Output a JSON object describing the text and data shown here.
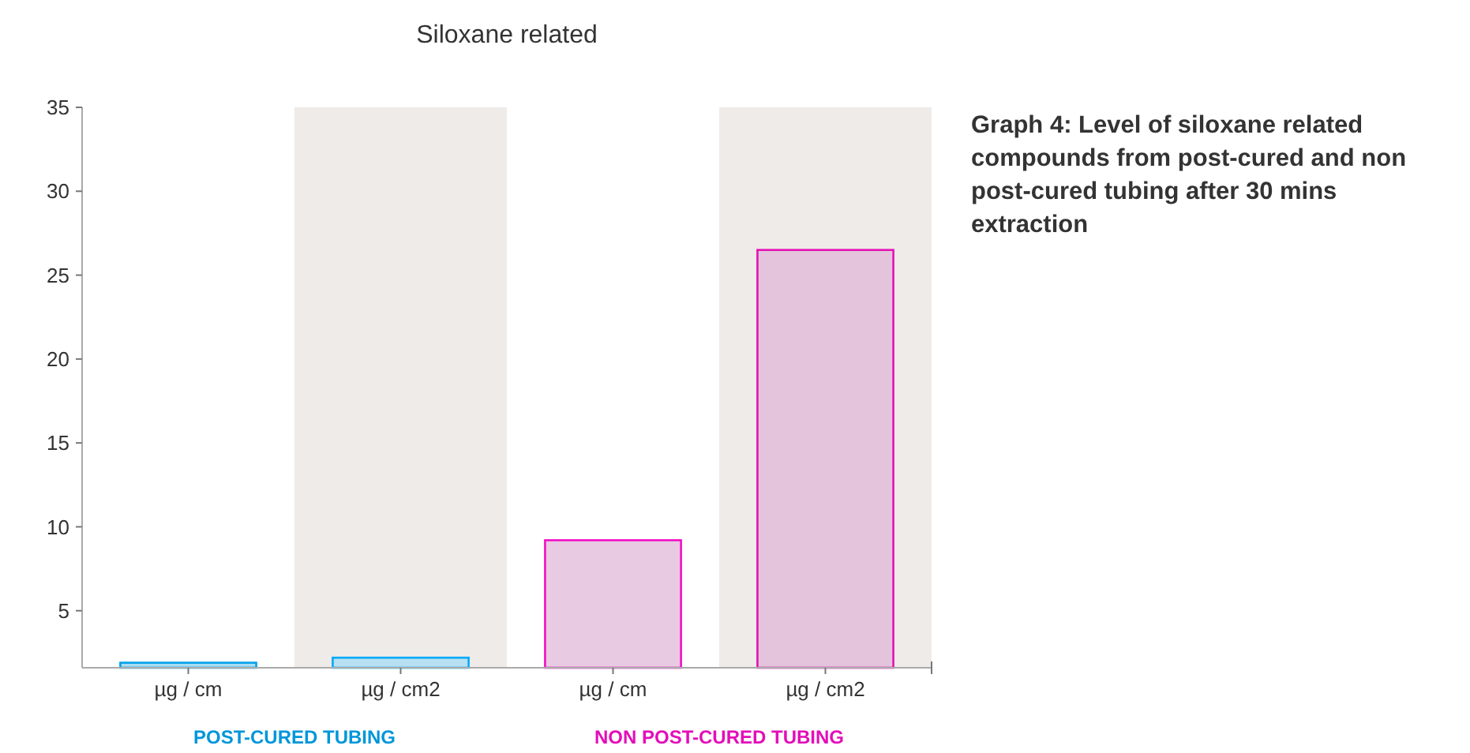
{
  "chart_data": {
    "type": "bar",
    "title": "Siloxane related",
    "categories": [
      "µg / cm",
      "µg / cm2",
      "µg / cm",
      "µg / cm2"
    ],
    "values": [
      1.9,
      2.2,
      9.2,
      26.5
    ],
    "colors": [
      "#a9dcf3",
      "#b9e0f2",
      "#e8cae2",
      "#e3c4dc"
    ],
    "ylim": [
      1.6,
      35
    ],
    "yticks": [
      5,
      10,
      15,
      20,
      25,
      30,
      35
    ],
    "grid": false,
    "annotations": [
      "POST-CURED TUBING",
      "NON POST-CURED TUBING",
      "Graph 4: Level of siloxane related compounds from post-cured and non post-cured tubing after 30 mins extraction"
    ]
  }
}
